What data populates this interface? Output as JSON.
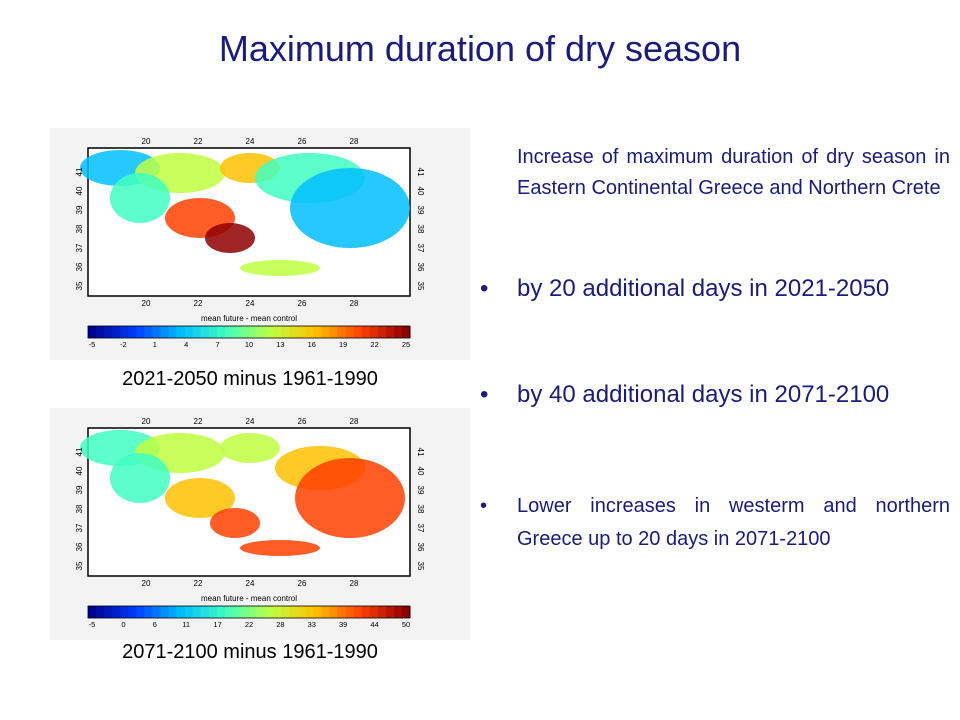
{
  "slide": {
    "title": "Maximum duration of dry season",
    "intro": "Increase of maximum duration of dry season in Eastern Continental Greece and Northern Crete",
    "bullets": [
      {
        "marker": "•",
        "text": "by 20 additional days in 2021-2050"
      },
      {
        "marker": "•",
        "text": "by 40 additional days in 2071-2100"
      },
      {
        "marker": "•",
        "text": "Lower increases in westerm and northern  Greece up to 20 days in 2071-2100"
      }
    ]
  },
  "maps": [
    {
      "caption": "2021-2050 minus 1961-1990",
      "colorbar_title": "mean future - mean control",
      "colorbar_ticks": [
        "-5",
        "-2",
        "1",
        "4",
        "7",
        "10",
        "13",
        "16",
        "19",
        "22",
        "25"
      ],
      "lon_ticks": [
        "20",
        "22",
        "24",
        "26",
        "28"
      ],
      "lat_ticks": [
        "35",
        "36",
        "37",
        "38",
        "39",
        "40",
        "41"
      ]
    },
    {
      "caption": "2071-2100 minus 1961-1990",
      "colorbar_title": "mean future - mean control",
      "colorbar_ticks": [
        "-5",
        "0",
        "6",
        "11",
        "17",
        "22",
        "28",
        "33",
        "39",
        "44",
        "50"
      ],
      "lon_ticks": [
        "20",
        "22",
        "24",
        "26",
        "28"
      ],
      "lat_ticks": [
        "35",
        "36",
        "37",
        "38",
        "39",
        "40",
        "41"
      ]
    }
  ],
  "colors": {
    "text_blue": "#1a1a80",
    "colormap": [
      "#00008f",
      "#0040ff",
      "#00bfff",
      "#40ffbf",
      "#bfff40",
      "#ffbf00",
      "#ff4000",
      "#8f0000"
    ]
  }
}
